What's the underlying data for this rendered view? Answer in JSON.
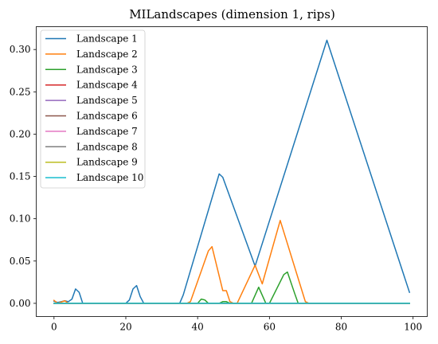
{
  "chart_data": {
    "type": "line",
    "title": "MILandscapes (dimension 1, rips)",
    "xlabel": "",
    "ylabel": "",
    "xlim": [
      -4.95,
      103.95
    ],
    "ylim": [
      -0.0156,
      0.327
    ],
    "xticks": [
      0,
      20,
      40,
      60,
      80,
      100
    ],
    "yticks": [
      0.0,
      0.05,
      0.1,
      0.15,
      0.2,
      0.25,
      0.3
    ],
    "xtick_labels": [
      "0",
      "20",
      "40",
      "60",
      "80",
      "100"
    ],
    "ytick_labels": [
      "0.00",
      "0.05",
      "0.10",
      "0.15",
      "0.20",
      "0.25",
      "0.30"
    ],
    "legend_position": "upper-left",
    "series": [
      {
        "name": "Landscape 1",
        "color": "#1f77b4",
        "x": [
          0,
          1,
          2,
          3,
          4,
          5,
          6,
          7,
          8,
          9,
          20,
          21,
          22,
          23,
          24,
          25,
          26,
          34,
          35,
          36,
          46,
          47,
          56,
          76,
          99
        ],
        "y": [
          0.0025,
          0.001,
          0.002,
          0.003,
          0.002,
          0.005,
          0.017,
          0.013,
          0.0,
          0.0,
          0.0,
          0.004,
          0.017,
          0.021,
          0.008,
          0.0,
          0.0,
          0.0,
          0.0,
          0.01,
          0.153,
          0.149,
          0.044,
          0.311,
          0.013
        ]
      },
      {
        "name": "Landscape 2",
        "color": "#ff7f0e",
        "x": [
          0,
          1,
          3,
          4,
          37,
          38,
          43,
          44,
          47,
          48,
          49,
          50,
          51,
          56,
          58,
          63,
          70,
          71,
          99
        ],
        "y": [
          0.0035,
          0.0,
          0.003,
          0.0,
          0.0,
          0.002,
          0.062,
          0.067,
          0.015,
          0.015,
          0.002,
          0.0,
          0.0,
          0.045,
          0.023,
          0.098,
          0.002,
          0.0,
          0.0
        ]
      },
      {
        "name": "Landscape 3",
        "color": "#2ca02c",
        "x": [
          0,
          40,
          41,
          42,
          43,
          46,
          47,
          48,
          49,
          55,
          57,
          59,
          60,
          64,
          65,
          67,
          68,
          99
        ],
        "y": [
          0.0,
          0.0,
          0.005,
          0.004,
          0.0,
          0.0,
          0.002,
          0.002,
          0.0,
          0.0,
          0.019,
          0.0,
          0.0,
          0.034,
          0.037,
          0.012,
          0.0,
          0.0
        ]
      },
      {
        "name": "Landscape 4",
        "color": "#d62728",
        "x": [
          0,
          99
        ],
        "y": [
          0.0,
          0.0
        ]
      },
      {
        "name": "Landscape 5",
        "color": "#9467bd",
        "x": [
          0,
          99
        ],
        "y": [
          0.0,
          0.0
        ]
      },
      {
        "name": "Landscape 6",
        "color": "#8c564b",
        "x": [
          0,
          99
        ],
        "y": [
          0.0,
          0.0
        ]
      },
      {
        "name": "Landscape 7",
        "color": "#e377c2",
        "x": [
          0,
          99
        ],
        "y": [
          0.0,
          0.0
        ]
      },
      {
        "name": "Landscape 8",
        "color": "#7f7f7f",
        "x": [
          0,
          99
        ],
        "y": [
          0.0,
          0.0
        ]
      },
      {
        "name": "Landscape 9",
        "color": "#bcbd22",
        "x": [
          0,
          99
        ],
        "y": [
          0.0,
          0.0
        ]
      },
      {
        "name": "Landscape 10",
        "color": "#17becf",
        "x": [
          0,
          99
        ],
        "y": [
          0.0,
          0.0
        ]
      }
    ]
  }
}
